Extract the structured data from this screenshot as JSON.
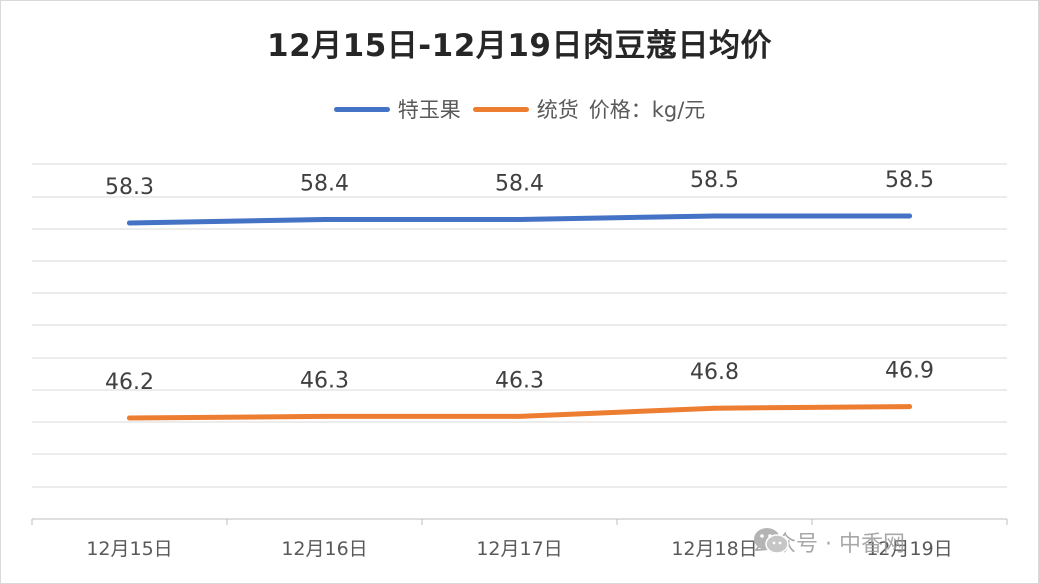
{
  "chart_data": {
    "type": "line",
    "title": "12月15日-12月19日肉豆蔻日均价",
    "unit_note": "价格：kg/元",
    "categories": [
      "12月15日",
      "12月16日",
      "12月17日",
      "12月18日",
      "12月19日"
    ],
    "series": [
      {
        "name": "特玉果",
        "color": "#4472c4",
        "values": [
          58.3,
          58.4,
          58.4,
          58.5,
          58.5
        ]
      },
      {
        "name": "统货",
        "color": "#ed7d31",
        "values": [
          46.2,
          46.3,
          46.3,
          46.8,
          46.9
        ]
      }
    ],
    "grid": true,
    "legend_position": "top"
  },
  "watermark": {
    "text": "公众号 · 中香网",
    "icon": "wechat-icon"
  }
}
